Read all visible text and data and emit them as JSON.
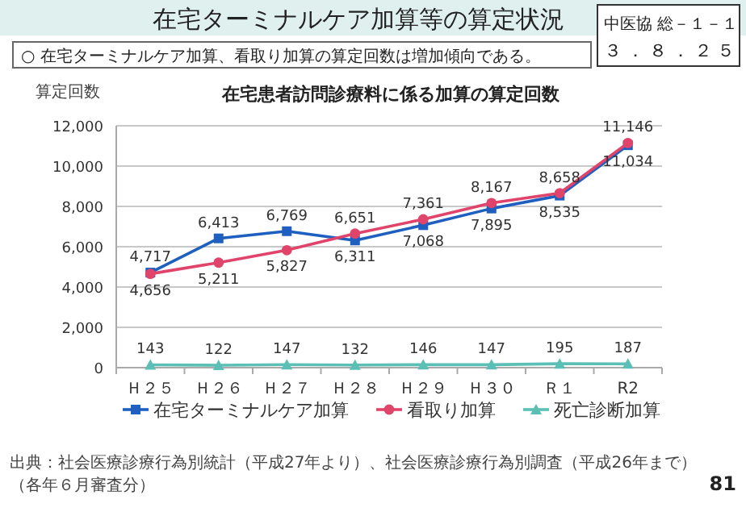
{
  "chart_data": {
    "type": "line",
    "title": "在宅患者訪問診療料に係る加算の算定回数",
    "subtitle": "○ 在宅ターミナルケア加算、看取り加算の算定回数は増加傾向である。",
    "ylabel": "算定回数",
    "annotations": [
      "在宅ターミナルケア加算等の算定状況",
      "中医協 総－１－１",
      "３．８．２５",
      "出典：社会医療診療行為別統計（平成27年より）、社会医療診療行為別調査（平成26年まで）（各年６月審査分）",
      "81"
    ],
    "categories": [
      "Ｈ２５",
      "Ｈ２６",
      "Ｈ２７",
      "Ｈ２８",
      "Ｈ２９",
      "Ｈ３０",
      "Ｒ１",
      "R2"
    ],
    "ylim": [
      0,
      12000
    ],
    "yticks": [
      {
        "value": 0,
        "label": "0"
      },
      {
        "value": 2000,
        "label": "2,000"
      },
      {
        "value": 4000,
        "label": "4,000"
      },
      {
        "value": 6000,
        "label": "6,000"
      },
      {
        "value": 8000,
        "label": "8,000"
      },
      {
        "value": 10000,
        "label": "10,000"
      },
      {
        "value": 12000,
        "label": "12,000"
      }
    ],
    "grid": "y",
    "legend": "bottom",
    "series": [
      {
        "name": "在宅ターミナルケア加算",
        "color": "#1f5fbf",
        "marker": "square",
        "values": [
          4717,
          6413,
          6769,
          6311,
          7068,
          7895,
          8535,
          11034
        ],
        "value_labels": [
          "4,717",
          "6,413",
          "6,769",
          "6,311",
          "7,068",
          "7,895",
          "8,535",
          "11,034"
        ]
      },
      {
        "name": "看取り加算",
        "color": "#e0446a",
        "marker": "circle",
        "values": [
          4656,
          5211,
          5827,
          6651,
          7361,
          8167,
          8658,
          11146
        ],
        "value_labels": [
          "4,656",
          "5,211",
          "5,827",
          "6,651",
          "7,361",
          "8,167",
          "8,658",
          "11,146"
        ]
      },
      {
        "name": "死亡診断加算",
        "color": "#5bbfb5",
        "marker": "triangle",
        "values": [
          143,
          122,
          147,
          132,
          146,
          147,
          195,
          187
        ],
        "value_labels": [
          "143",
          "122",
          "147",
          "132",
          "146",
          "147",
          "195",
          "187"
        ]
      }
    ]
  }
}
